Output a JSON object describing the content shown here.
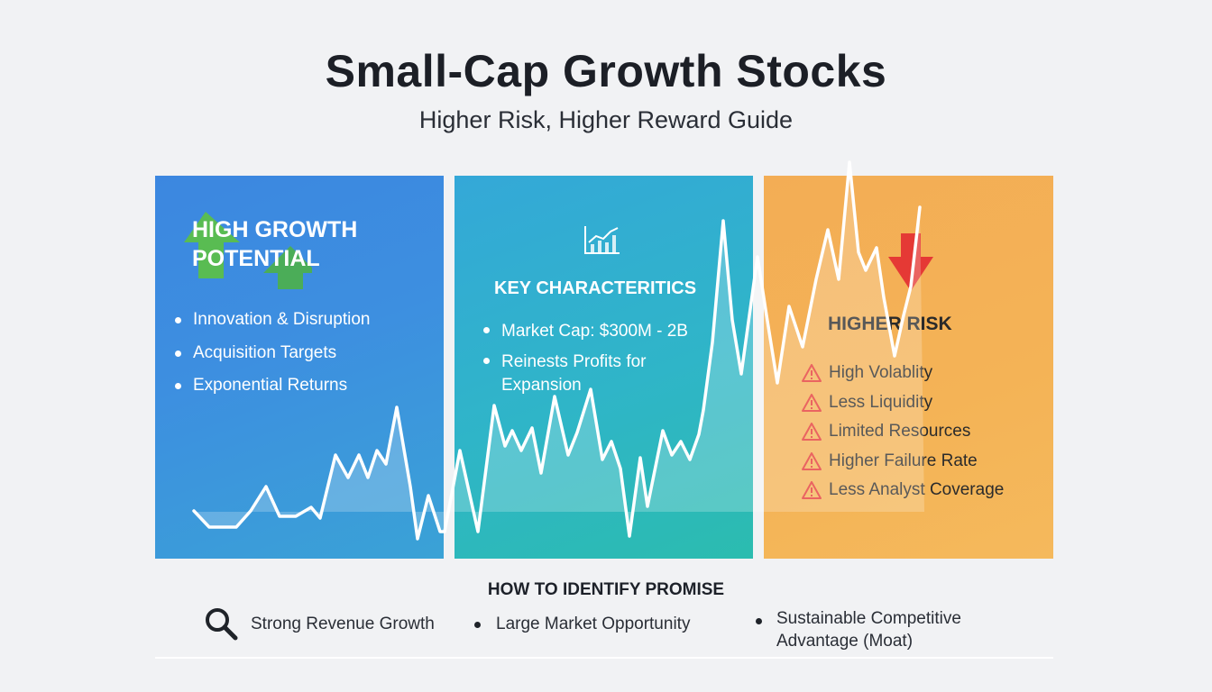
{
  "header": {
    "title": "Small-Cap Growth Stocks",
    "subtitle": "Higher Risk, Higher Reward Guide"
  },
  "growth_panel": {
    "heading_line1": "HIGH GROWTH",
    "heading_line2": "POTENTIAL",
    "icon": "up-arrows-icon",
    "color": "#3c87e0",
    "items": [
      "Innovation & Disruption",
      "Acquisition Targets",
      "Exponential Returns"
    ]
  },
  "characteristics_panel": {
    "heading": "KEY CHARACTERITICS",
    "icon": "line-chart-icon",
    "color": "#2fb5c8",
    "items": [
      {
        "line1": "Market Cap: $300M - 2B",
        "line2": ""
      },
      {
        "line1": "Reinests Profits for",
        "line2": "Expansion"
      }
    ]
  },
  "risk_panel": {
    "heading": "HIGHER RISK",
    "icon": "down-arrow-icon",
    "color": "#f4b356",
    "warning_color": "#e53935",
    "items": [
      "High Volablity",
      "Less Liquidity",
      "Limited Resources",
      "Higher Failure Rate",
      "Less Analyst Coverage"
    ]
  },
  "promise": {
    "heading": "HOW TO IDENTIFY PROMISE",
    "items": [
      {
        "icon": "search-icon",
        "line1": "Strong Revenue Growth",
        "line2": ""
      },
      {
        "icon": "bullet",
        "line1": "Large Market Opportunity",
        "line2": ""
      },
      {
        "icon": "bullet",
        "line1": "Sustainable Competitive",
        "line2": "Advantage (Moat)"
      }
    ]
  }
}
